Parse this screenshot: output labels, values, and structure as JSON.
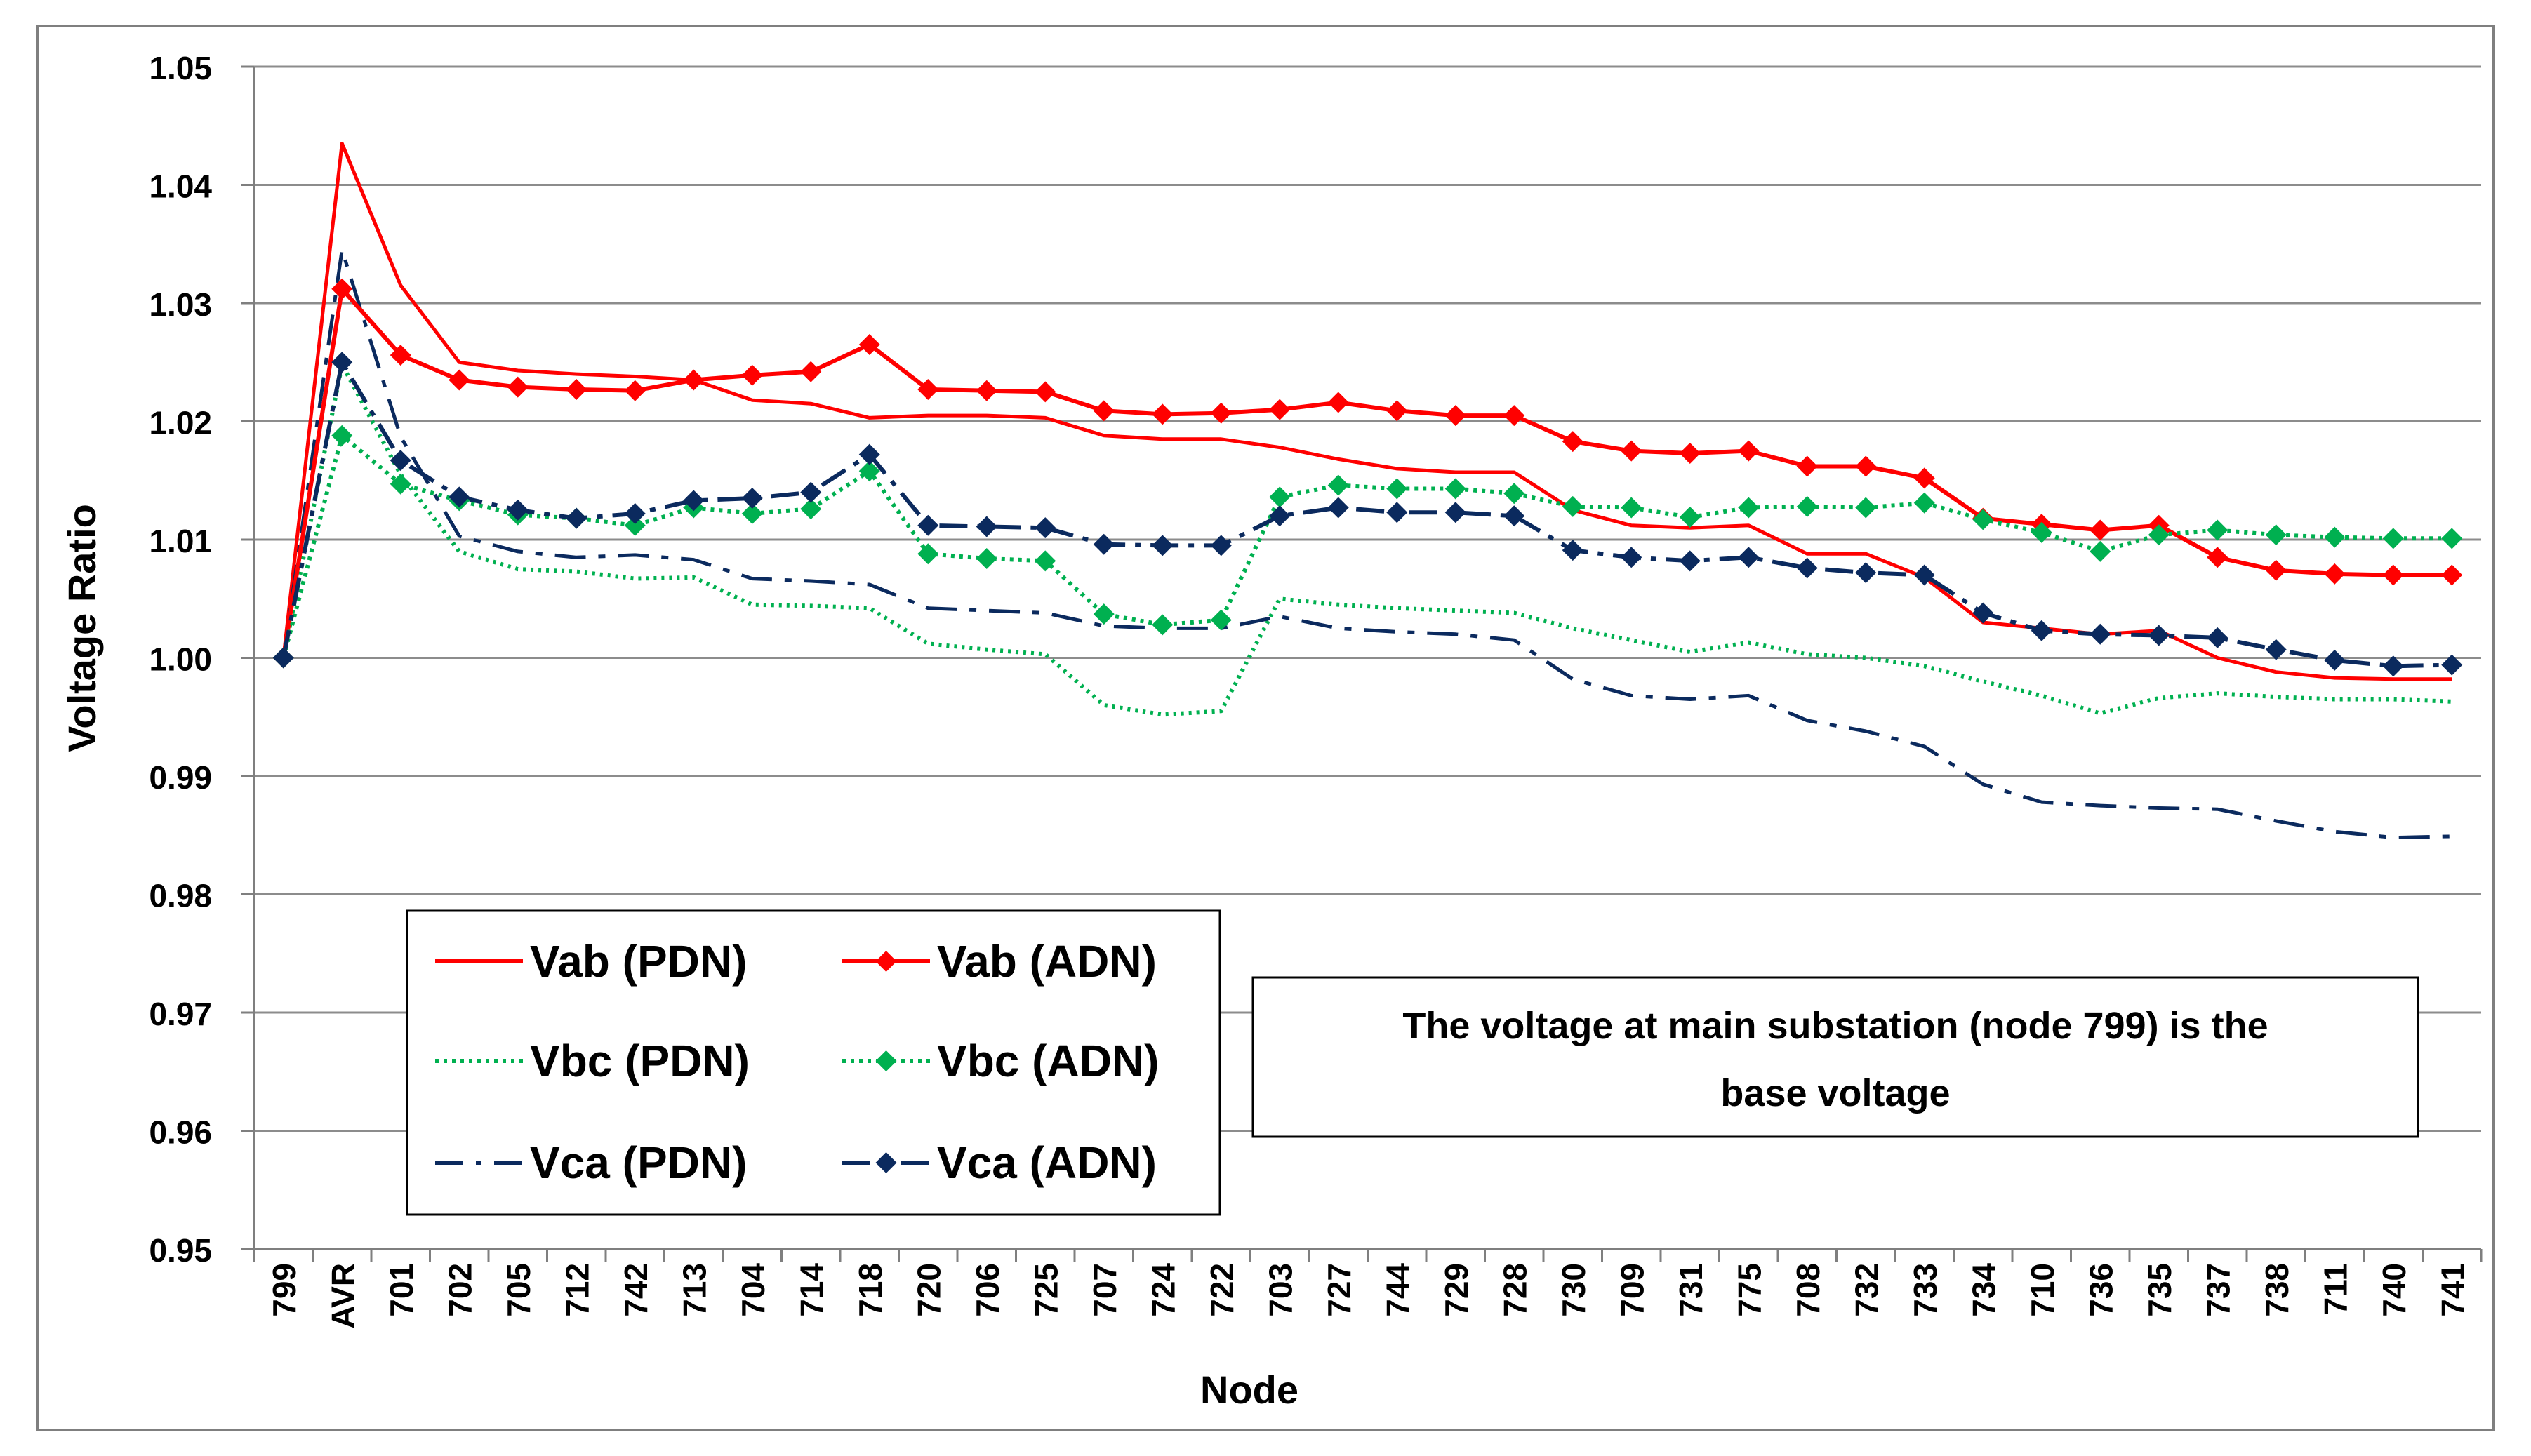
{
  "chart_data": {
    "type": "line",
    "title": "",
    "xlabel": "Node",
    "ylabel": "Voltage Ratio",
    "ylim": [
      0.95,
      1.05
    ],
    "yticks": [
      "0.95",
      "0.96",
      "0.97",
      "0.98",
      "0.99",
      "1.00",
      "1.01",
      "1.02",
      "1.03",
      "1.04",
      "1.05"
    ],
    "grid": "horizontal",
    "categories": [
      "799",
      "AVR",
      "701",
      "702",
      "705",
      "712",
      "742",
      "713",
      "704",
      "714",
      "718",
      "720",
      "706",
      "725",
      "707",
      "724",
      "722",
      "703",
      "727",
      "744",
      "729",
      "728",
      "730",
      "709",
      "731",
      "775",
      "708",
      "732",
      "733",
      "734",
      "710",
      "736",
      "735",
      "737",
      "738",
      "711",
      "740",
      "741"
    ],
    "series": [
      {
        "name": "Vab (PDN)",
        "color": "#ff0000",
        "style": "solid",
        "marker": "none",
        "values": [
          1.0,
          1.0435,
          1.0315,
          1.025,
          1.0243,
          1.024,
          1.0238,
          1.0235,
          1.0218,
          1.0215,
          1.0203,
          1.0205,
          1.0205,
          1.0203,
          1.0188,
          1.0185,
          1.0185,
          1.0178,
          1.0168,
          1.016,
          1.0157,
          1.0157,
          1.0125,
          1.0112,
          1.011,
          1.0112,
          1.0088,
          1.0088,
          1.0068,
          1.003,
          1.0025,
          1.002,
          1.0023,
          1.0,
          0.9988,
          0.9983,
          0.9982,
          0.9982
        ]
      },
      {
        "name": "Vab (ADN)",
        "color": "#ff0000",
        "style": "solid",
        "marker": "diamond",
        "values": [
          1.0,
          1.0312,
          1.0256,
          1.0235,
          1.0229,
          1.0227,
          1.0226,
          1.0235,
          1.0239,
          1.0242,
          1.0265,
          1.0227,
          1.0226,
          1.0225,
          1.0209,
          1.0206,
          1.0207,
          1.021,
          1.0216,
          1.0209,
          1.0205,
          1.0205,
          1.0183,
          1.0175,
          1.0173,
          1.0175,
          1.0162,
          1.0162,
          1.0152,
          1.0118,
          1.0113,
          1.0108,
          1.0112,
          1.0085,
          1.0074,
          1.0071,
          1.007,
          1.007
        ]
      },
      {
        "name": "Vbc (PDN)",
        "color": "#00b050",
        "style": "dotted",
        "marker": "none",
        "values": [
          1.0,
          1.0248,
          1.0155,
          1.009,
          1.0075,
          1.0073,
          1.0067,
          1.0068,
          1.0045,
          1.0044,
          1.0042,
          1.0012,
          1.0007,
          1.0003,
          0.996,
          0.9952,
          0.9955,
          1.005,
          1.0045,
          1.0042,
          1.004,
          1.0038,
          1.0025,
          1.0015,
          1.0005,
          1.0013,
          1.0003,
          1.0,
          0.9993,
          0.998,
          0.9968,
          0.9953,
          0.9966,
          0.997,
          0.9967,
          0.9965,
          0.9965,
          0.9963
        ]
      },
      {
        "name": "Vbc (ADN)",
        "color": "#00b050",
        "style": "dotted",
        "marker": "diamond",
        "values": [
          1.0,
          1.0188,
          1.0147,
          1.0133,
          1.0121,
          1.0118,
          1.0112,
          1.0127,
          1.0122,
          1.0126,
          1.0158,
          1.0088,
          1.0084,
          1.0082,
          1.0037,
          1.0028,
          1.0032,
          1.0136,
          1.0146,
          1.0143,
          1.0143,
          1.0139,
          1.0128,
          1.0127,
          1.0119,
          1.0127,
          1.0128,
          1.0127,
          1.0131,
          1.0117,
          1.0106,
          1.009,
          1.0104,
          1.0108,
          1.0104,
          1.0102,
          1.0101,
          1.0101
        ]
      },
      {
        "name": "Vca (PDN)",
        "color": "#0b2a5e",
        "style": "dashdot",
        "marker": "none",
        "values": [
          1.0,
          1.0345,
          1.0187,
          1.0103,
          1.009,
          1.0085,
          1.0087,
          1.0083,
          1.0067,
          1.0065,
          1.0062,
          1.0042,
          1.004,
          1.0038,
          1.0027,
          1.0025,
          1.0025,
          1.0035,
          1.0025,
          1.0022,
          1.002,
          1.0015,
          0.9982,
          0.9968,
          0.9965,
          0.9968,
          0.9947,
          0.9938,
          0.9925,
          0.9893,
          0.9878,
          0.9875,
          0.9873,
          0.9872,
          0.9862,
          0.9853,
          0.9848,
          0.9849
        ]
      },
      {
        "name": "Vca (ADN)",
        "color": "#0b2a5e",
        "style": "dashdot",
        "marker": "diamond",
        "values": [
          1.0,
          1.025,
          1.0167,
          1.0136,
          1.0125,
          1.0118,
          1.0122,
          1.0133,
          1.0135,
          1.014,
          1.0172,
          1.0112,
          1.0111,
          1.011,
          1.0096,
          1.0095,
          1.0095,
          1.012,
          1.0127,
          1.0123,
          1.0123,
          1.012,
          1.0091,
          1.0085,
          1.0082,
          1.0085,
          1.0076,
          1.0072,
          1.007,
          1.0038,
          1.0023,
          1.002,
          1.0019,
          1.0017,
          1.0007,
          0.9998,
          0.9993,
          0.9994
        ]
      }
    ],
    "legend": {
      "placement": "bottom-left",
      "entries": [
        "Vab (PDN)",
        "Vab (ADN)",
        "Vbc (PDN)",
        "Vbc (ADN)",
        "Vca (PDN)",
        "Vca (ADN)"
      ]
    },
    "annotation": {
      "line1": "The voltage at main substation (node 799) is the",
      "line2": "base voltage"
    }
  }
}
